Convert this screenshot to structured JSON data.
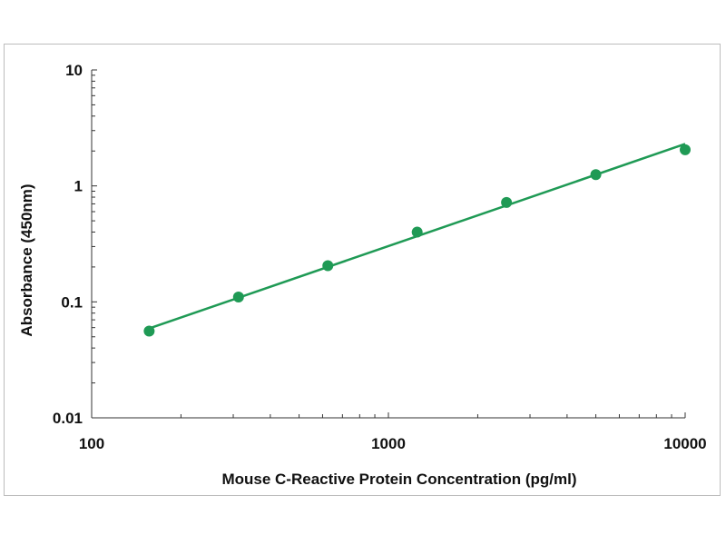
{
  "chart_data": {
    "type": "line",
    "title": "",
    "xlabel": "Mouse C-Reactive Protein Concentration (pg/ml)",
    "ylabel": "Absorbance (450nm)",
    "x_scale": "log",
    "y_scale": "log",
    "xlim": [
      100,
      10000
    ],
    "ylim": [
      0.01,
      10
    ],
    "x_ticks": [
      {
        "value": 100,
        "label": "100"
      },
      {
        "value": 1000,
        "label": "1000"
      },
      {
        "value": 10000,
        "label": "10000"
      }
    ],
    "y_ticks": [
      {
        "value": 10,
        "label": "10"
      },
      {
        "value": 1,
        "label": "1"
      },
      {
        "value": 0.1,
        "label": "0.1"
      },
      {
        "value": 0.01,
        "label": "0.01"
      }
    ],
    "grid": false,
    "legend": "none",
    "color": "#1f9a55",
    "series": [
      {
        "points": [
          {
            "x": 156.25,
            "y": 0.056
          },
          {
            "x": 312.5,
            "y": 0.11
          },
          {
            "x": 625,
            "y": 0.205
          },
          {
            "x": 1250,
            "y": 0.4
          },
          {
            "x": 2500,
            "y": 0.72
          },
          {
            "x": 5000,
            "y": 1.25
          },
          {
            "x": 10000,
            "y": 2.05
          }
        ],
        "fit_line": [
          {
            "x": 156.25,
            "y": 0.059
          },
          {
            "x": 10000,
            "y": 2.3
          }
        ]
      }
    ]
  }
}
